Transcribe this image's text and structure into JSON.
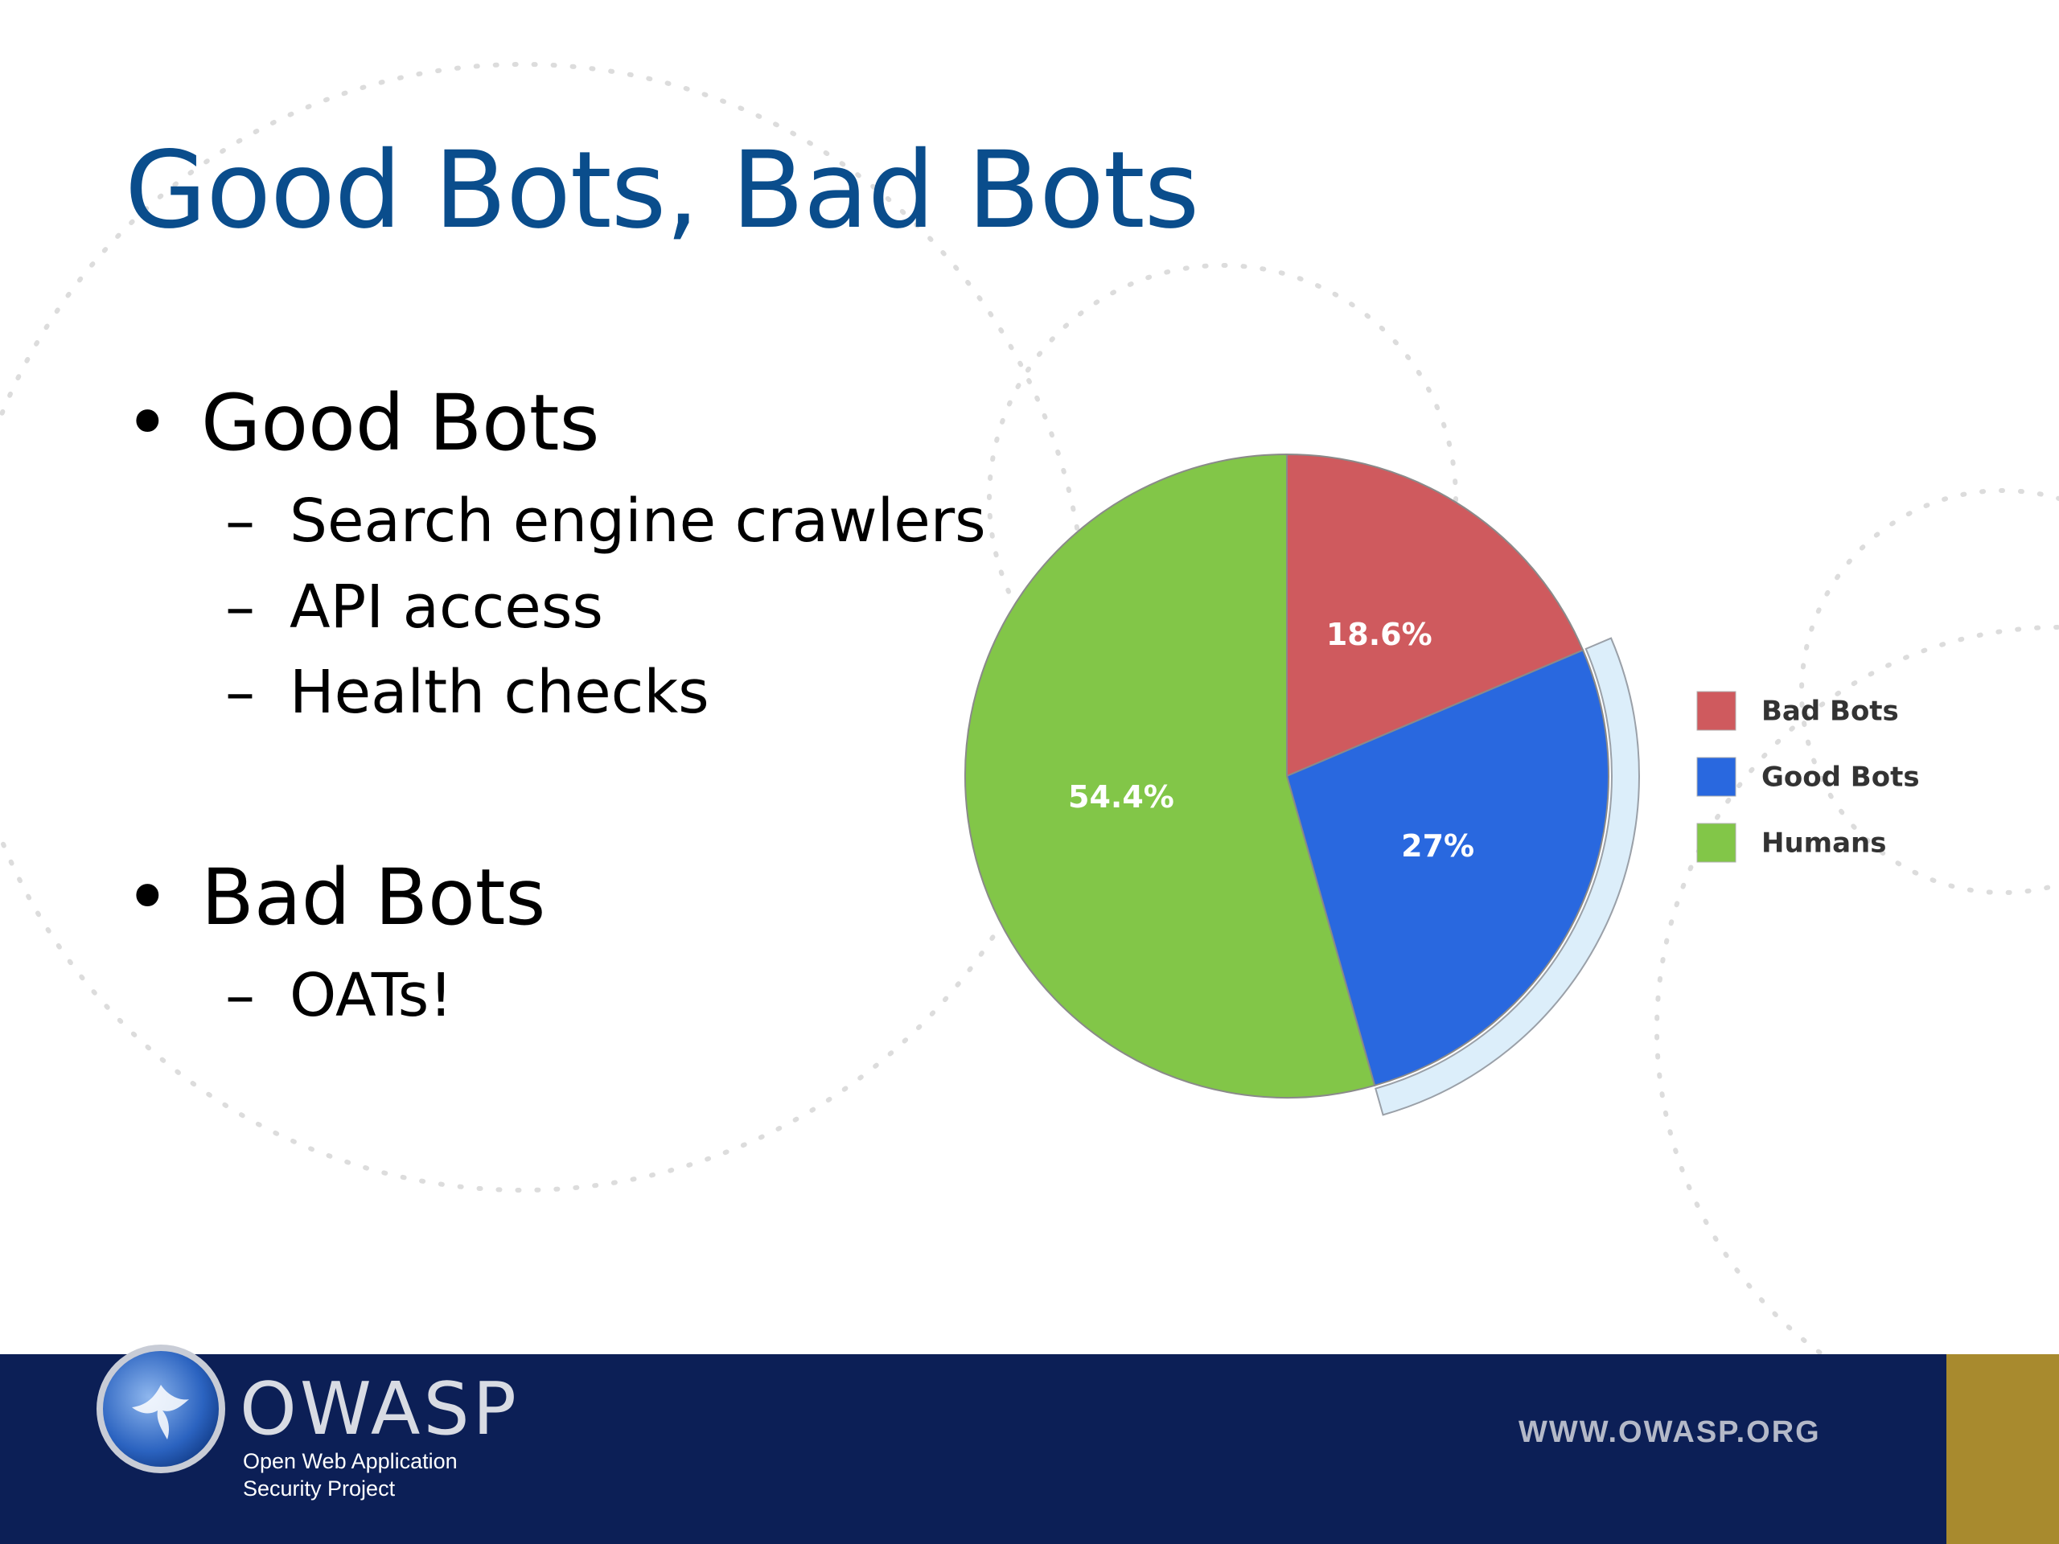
{
  "slide": {
    "title": "Good Bots, Bad Bots",
    "bullets": [
      {
        "text": "Good Bots",
        "subs": [
          "Search engine crawlers",
          "API access",
          "Health checks"
        ]
      },
      {
        "text": "Bad Bots",
        "subs": [
          "OATs!"
        ]
      }
    ]
  },
  "chart_data": {
    "type": "pie",
    "title": "",
    "categories": [
      "Bad Bots",
      "Good Bots",
      "Humans"
    ],
    "values": [
      18.6,
      27,
      54.4
    ],
    "labels": [
      "18.6%",
      "27%",
      "54.4%"
    ],
    "colors": [
      "#cf5a5e",
      "#2968df",
      "#82c648"
    ],
    "highlight": "Good Bots",
    "legend": "right"
  },
  "footer": {
    "logo_word": "OWASP",
    "logo_line1": "Open Web Application",
    "logo_line2": "Security Project",
    "website": "WWW.OWASP.ORG",
    "background": "#0c1f56",
    "accent": "#a88a2e"
  }
}
